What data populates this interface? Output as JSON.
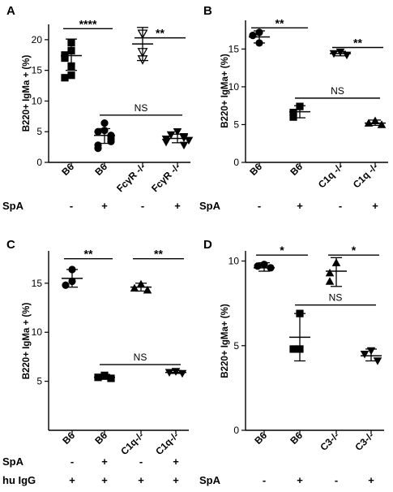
{
  "chart_data": [
    {
      "type": "scatter",
      "panel": "A",
      "ylabel": "B220+ IgMa + (%)",
      "ylim": [
        0,
        22.5
      ],
      "yticks": [
        0,
        5,
        10,
        15,
        20
      ],
      "categories": [
        "B6",
        "B6",
        "FcγR -/-",
        "FcγR -/-"
      ],
      "markers": [
        "square",
        "circle",
        "triangle-down-open",
        "triangle-down"
      ],
      "values": [
        [
          19.5,
          18.2,
          17.5,
          17.0,
          15.7,
          14.2,
          13.8
        ],
        [
          6.4,
          5.2,
          5.0,
          4.4,
          4.2,
          3.8,
          3.4,
          2.8,
          2.3
        ],
        [
          21.0,
          18.0,
          16.8
        ],
        [
          5.0,
          4.5,
          4.2,
          4.0,
          3.8,
          3.6,
          3.3,
          2.8
        ]
      ],
      "stats": [
        {
          "mean": 17.4,
          "lo": 15.0,
          "hi": 20.1
        },
        {
          "mean": 4.4,
          "lo": 3.1,
          "hi": 5.5
        },
        {
          "mean": 19.3,
          "lo": 16.6,
          "hi": 22.0
        },
        {
          "mean": 3.9,
          "lo": 3.2,
          "hi": 4.6
        }
      ],
      "brackets": [
        {
          "from": 0,
          "to": 1,
          "y": 21.8,
          "label": "****"
        },
        {
          "from": 2,
          "to": 3,
          "y": 20.3,
          "label": "**"
        },
        {
          "from": 1,
          "to": 3,
          "y": 7.7,
          "label": "NS"
        }
      ],
      "rows": [
        {
          "label": "SpA",
          "values": [
            "-",
            "+",
            "-",
            "+"
          ]
        }
      ]
    },
    {
      "type": "scatter",
      "panel": "B",
      "ylabel": "B220+ IgMa+ (%)",
      "ylim": [
        0,
        18.8
      ],
      "yticks": [
        0,
        5,
        10,
        15
      ],
      "categories": [
        "B6",
        "B6",
        "C1q -/-",
        "C1q -/-"
      ],
      "markers": [
        "circle",
        "square",
        "triangle-down",
        "triangle"
      ],
      "values": [
        [
          17.2,
          16.8,
          15.8
        ],
        [
          7.4,
          6.6,
          6.0
        ],
        [
          14.6,
          14.4,
          14.2
        ],
        [
          5.5,
          5.2,
          5.0
        ]
      ],
      "stats": [
        {
          "mean": 16.6,
          "lo": 15.8,
          "hi": 17.4
        },
        {
          "mean": 6.7,
          "lo": 5.9,
          "hi": 7.5
        },
        {
          "mean": 14.4,
          "lo": 14.1,
          "hi": 14.7
        },
        {
          "mean": 5.2,
          "lo": 4.9,
          "hi": 5.6
        }
      ],
      "brackets": [
        {
          "from": 0,
          "to": 1,
          "y": 17.8,
          "label": "**"
        },
        {
          "from": 2,
          "to": 3,
          "y": 15.2,
          "label": "**"
        },
        {
          "from": 1,
          "to": 3,
          "y": 8.5,
          "label": "NS"
        }
      ],
      "rows": [
        {
          "label": "SpA",
          "values": [
            "-",
            "+",
            "-",
            "+"
          ]
        }
      ]
    },
    {
      "type": "scatter",
      "panel": "C",
      "ylabel": "B220+ IgMa + (%)",
      "ylim": [
        0,
        18.3
      ],
      "yticks": [
        5,
        10,
        15
      ],
      "categories": [
        "B6",
        "B6",
        "C1q-/-",
        "C1q-/-"
      ],
      "markers": [
        "circle",
        "square",
        "triangle",
        "triangle-down"
      ],
      "values": [
        [
          16.4,
          15.2,
          14.8
        ],
        [
          5.6,
          5.4,
          5.3
        ],
        [
          14.9,
          14.5,
          14.3
        ],
        [
          6.0,
          5.9,
          5.8
        ]
      ],
      "stats": [
        {
          "mean": 15.5,
          "lo": 14.6,
          "hi": 16.4
        },
        {
          "mean": 5.4,
          "lo": 5.2,
          "hi": 5.7
        },
        {
          "mean": 14.6,
          "lo": 14.2,
          "hi": 15.0
        },
        {
          "mean": 5.9,
          "lo": 5.8,
          "hi": 6.1
        }
      ],
      "brackets": [
        {
          "from": 0,
          "to": 1,
          "y": 17.5,
          "label": "**"
        },
        {
          "from": 2,
          "to": 3,
          "y": 17.5,
          "label": "**"
        },
        {
          "from": 1,
          "to": 3,
          "y": 6.7,
          "label": "NS"
        }
      ],
      "rows": [
        {
          "label": "SpA",
          "values": [
            "-",
            "+",
            "-",
            "+"
          ]
        },
        {
          "label": "hu IgG",
          "values": [
            "+",
            "+",
            "+",
            "+"
          ]
        }
      ]
    },
    {
      "type": "scatter",
      "panel": "D",
      "ylabel": "B220+ IgMa+ (%)",
      "ylim": [
        0,
        10.6
      ],
      "yticks": [
        0,
        5,
        10
      ],
      "categories": [
        "B6",
        "B6",
        "C3-/-",
        "C3-/-"
      ],
      "markers": [
        "circle",
        "square",
        "triangle",
        "triangle-down"
      ],
      "values": [
        [
          9.8,
          9.7,
          9.6
        ],
        [
          6.9,
          4.8,
          4.8
        ],
        [
          9.9,
          9.3,
          8.8
        ],
        [
          4.7,
          4.5,
          4.1
        ]
      ],
      "stats": [
        {
          "mean": 9.6,
          "lo": 9.4,
          "hi": 9.9
        },
        {
          "mean": 5.5,
          "lo": 4.1,
          "hi": 6.9
        },
        {
          "mean": 9.4,
          "lo": 8.5,
          "hi": 10.2
        },
        {
          "mean": 4.4,
          "lo": 4.1,
          "hi": 4.8
        }
      ],
      "brackets": [
        {
          "from": 0,
          "to": 1,
          "y": 10.35,
          "label": "*"
        },
        {
          "from": 2,
          "to": 3,
          "y": 10.35,
          "label": "*"
        },
        {
          "from": 1,
          "to": 3,
          "y": 7.4,
          "label": "NS"
        }
      ],
      "rows": [
        {
          "label": "SpA",
          "values": [
            "-",
            "+",
            "-",
            "+"
          ]
        }
      ]
    }
  ]
}
